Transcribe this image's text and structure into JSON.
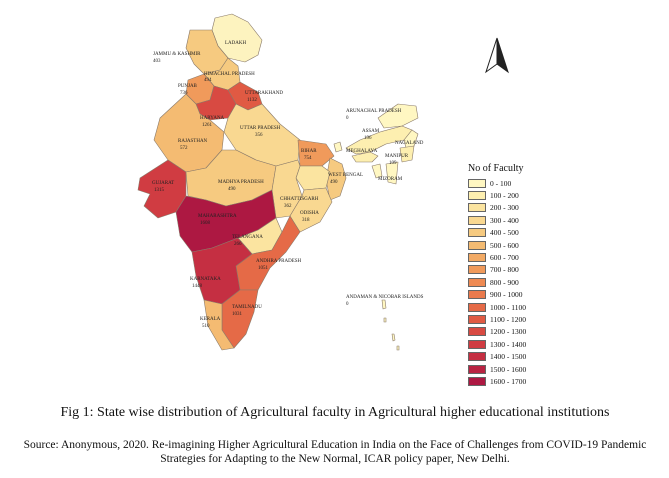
{
  "figure": {
    "caption": "Fig 1: State wise distribution of Agricultural faculty in Agricultural higher educational institutions",
    "source": "Source: Anonymous, 2020. Re-imagining Higher Agricultural Education in India on the Face of Challenges from COVID-19 Pandemic Strategies for Adapting to the New Normal, ICAR policy paper, New Delhi."
  },
  "legend": {
    "title": "No of Faculty",
    "classes": [
      {
        "label": "0 - 100",
        "color": "#fff7c2"
      },
      {
        "label": "100 - 200",
        "color": "#fdefb0"
      },
      {
        "label": "200 - 300",
        "color": "#fbe4a0"
      },
      {
        "label": "300 - 400",
        "color": "#f9d891"
      },
      {
        "label": "400 - 500",
        "color": "#f6ca80"
      },
      {
        "label": "500 - 600",
        "color": "#f4bb72"
      },
      {
        "label": "600 - 700",
        "color": "#f2aa65"
      },
      {
        "label": "700 - 800",
        "color": "#f09a5b"
      },
      {
        "label": "800 - 900",
        "color": "#ee8a53"
      },
      {
        "label": "900 - 1000",
        "color": "#ea7a4d"
      },
      {
        "label": "1000 - 1100",
        "color": "#e56a47"
      },
      {
        "label": "1100 - 1200",
        "color": "#e05a43"
      },
      {
        "label": "1200 - 1300",
        "color": "#d84a42"
      },
      {
        "label": "1300 - 1400",
        "color": "#d03c42"
      },
      {
        "label": "1400 - 1500",
        "color": "#c52f42"
      },
      {
        "label": "1500 - 1600",
        "color": "#b92342"
      },
      {
        "label": "1600 - 1700",
        "color": "#ad1842"
      }
    ]
  },
  "states": [
    {
      "id": "ladakh",
      "name": "LADAKH",
      "value": "",
      "color": "#fdf3bf"
    },
    {
      "id": "jk",
      "name": "JAMMU & KASHMIR",
      "value": "403",
      "color": "#f6ca80"
    },
    {
      "id": "hp",
      "name": "HIMACHAL PRADESH",
      "value": "494",
      "color": "#f6ca80"
    },
    {
      "id": "punjab",
      "name": "PUNJAB",
      "value": "736",
      "color": "#f09a5b"
    },
    {
      "id": "uk",
      "name": "UTTARAKHAND",
      "value": "1132",
      "color": "#e05a43"
    },
    {
      "id": "haryana",
      "name": "HARYANA",
      "value": "1261",
      "color": "#d84a42"
    },
    {
      "id": "rajasthan",
      "name": "RAJASTHAN",
      "value": "572",
      "color": "#f4bb72"
    },
    {
      "id": "up",
      "name": "UTTAR PRADESH",
      "value": "356",
      "color": "#f9d891"
    },
    {
      "id": "bihar",
      "name": "BIHAR",
      "value": "754",
      "color": "#f09a5b"
    },
    {
      "id": "gujarat",
      "name": "GUJARAT",
      "value": "1315",
      "color": "#d03c42"
    },
    {
      "id": "mp",
      "name": "MADHYA PRADESH",
      "value": "490",
      "color": "#f6ca80"
    },
    {
      "id": "wb",
      "name": "WEST BENGAL",
      "value": "490",
      "color": "#f6ca80"
    },
    {
      "id": "chh",
      "name": "CHHATTISGARH",
      "value": "362",
      "color": "#f9d891"
    },
    {
      "id": "odisha",
      "name": "ODISHA",
      "value": "318",
      "color": "#f9d891"
    },
    {
      "id": "mh",
      "name": "MAHARASHTRA",
      "value": "1608",
      "color": "#ad1842"
    },
    {
      "id": "tg",
      "name": "TELANGANA",
      "value": "266",
      "color": "#fbe4a0"
    },
    {
      "id": "ap",
      "name": "ANDHRA PRADESH",
      "value": "1051",
      "color": "#e56a47"
    },
    {
      "id": "ka",
      "name": "KARNATAKA",
      "value": "1448",
      "color": "#c52f42"
    },
    {
      "id": "tn",
      "name": "TAMILNADU",
      "value": "1031",
      "color": "#e56a47"
    },
    {
      "id": "kerala",
      "name": "KERALA",
      "value": "510",
      "color": "#f4bb72"
    },
    {
      "id": "arunachal",
      "name": "ARUNACHAL PRADESH",
      "value": "0",
      "color": "#fff7c2"
    },
    {
      "id": "assam",
      "name": "ASSAM",
      "value": "196",
      "color": "#fdefb0"
    },
    {
      "id": "nagaland",
      "name": "NAGALAND",
      "value": "",
      "color": "#fff7c2"
    },
    {
      "id": "meghalaya",
      "name": "MEGHALAYA",
      "value": "",
      "color": "#fdefb0"
    },
    {
      "id": "manipur",
      "name": "MANIPUR",
      "value": "109",
      "color": "#fdefb0"
    },
    {
      "id": "mizoram",
      "name": "MIZORAM",
      "value": "",
      "color": "#fff7c2"
    },
    {
      "id": "tripura",
      "name": "",
      "value": "",
      "color": "#fff7c2"
    },
    {
      "id": "jharkhand",
      "name": "",
      "value": "",
      "color": "#fbe4a0"
    },
    {
      "id": "sikkim",
      "name": "",
      "value": "",
      "color": "#fff7c2"
    },
    {
      "id": "andaman",
      "name": "ANDAMAN & NICOBAR ISLANDS",
      "value": "0",
      "color": "#fff7c2"
    }
  ],
  "north_arrow": {
    "icon": "north-arrow-icon"
  }
}
